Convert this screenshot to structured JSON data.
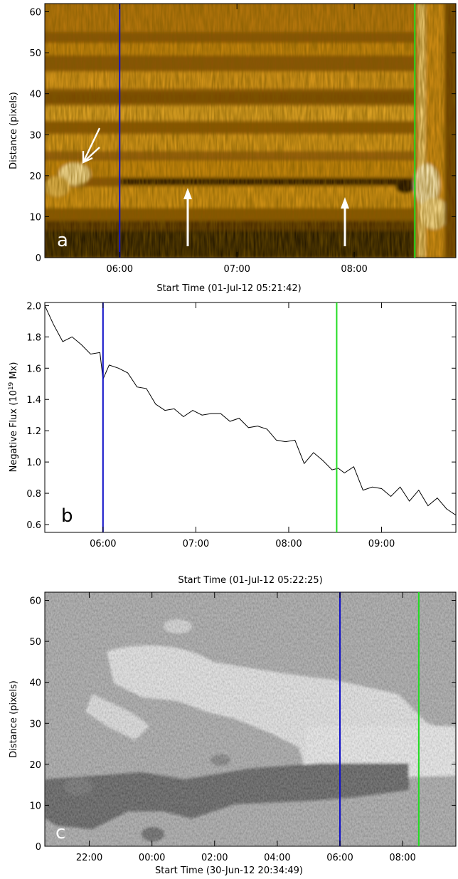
{
  "chart_data": [
    {
      "type": "heatmap",
      "panel_label": "a",
      "colormap": "yellow-orange (AIA 171-like)",
      "colors": {
        "dark": "#1a0d00",
        "mid": "#b8720a",
        "bright": "#ffe9a8",
        "marker_blue": "#1010c8",
        "marker_green": "#22dd22",
        "arrows": "#ffffff"
      },
      "ylabel": "Distance (pixels)",
      "xlabel": "Start Time (01-Jul-12 05:21:42)",
      "xlim_minutes_from_05_00": [
        21.7,
        232
      ],
      "ylim": [
        0,
        62
      ],
      "x_ticks": [
        "06:00",
        "07:00",
        "08:00"
      ],
      "x_tick_minutes_from_05_00": [
        60,
        120,
        180
      ],
      "y_ticks": [
        "0",
        "10",
        "20",
        "30",
        "40",
        "50",
        "60"
      ],
      "vlines": [
        {
          "color": "blue",
          "time": "06:00"
        },
        {
          "color": "green",
          "time": "08:31"
        }
      ],
      "annotations": [
        "double arrow at ~05:40, distance ~23",
        "arrow at ~06:35 pointing up to distance ~17",
        "arrow at ~07:58 pointing up to distance ~15"
      ]
    },
    {
      "type": "line",
      "panel_label": "b",
      "ylabel": "Negative Flux (10",
      "ylabel_superscript": "19",
      "ylabel_unit": " Mx)",
      "xlabel": "Start Time (01-Jul-12 05:22:25)",
      "xlim_minutes_from_05_00": [
        22.4,
        288
      ],
      "ylim": [
        0.55,
        2.02
      ],
      "x_ticks": [
        "06:00",
        "07:00",
        "08:00",
        "09:00"
      ],
      "x_tick_minutes_from_05_00": [
        60,
        120,
        180,
        240
      ],
      "y_ticks": [
        "0.6",
        "0.8",
        "1.0",
        "1.2",
        "1.4",
        "1.6",
        "1.8",
        "2.0"
      ],
      "y_tick_values": [
        0.6,
        0.8,
        1.0,
        1.2,
        1.4,
        1.6,
        1.8,
        2.0
      ],
      "series": [
        {
          "x": [
            22.4,
            28,
            34,
            40,
            46,
            52,
            58,
            60,
            64,
            70,
            76,
            82,
            88,
            94,
            100,
            106,
            112,
            118,
            124,
            130,
            136,
            142,
            148,
            154,
            160,
            166,
            172,
            178,
            184,
            190,
            196,
            202,
            208,
            212,
            216,
            222,
            228,
            234,
            240,
            246,
            252,
            258,
            264,
            270,
            276,
            282,
            288
          ],
          "y": [
            2.0,
            1.88,
            1.77,
            1.8,
            1.75,
            1.69,
            1.7,
            1.53,
            1.62,
            1.6,
            1.57,
            1.48,
            1.47,
            1.37,
            1.33,
            1.34,
            1.29,
            1.33,
            1.3,
            1.31,
            1.31,
            1.26,
            1.28,
            1.22,
            1.23,
            1.21,
            1.14,
            1.13,
            1.14,
            0.99,
            1.06,
            1.01,
            0.95,
            0.96,
            0.93,
            0.97,
            0.82,
            0.84,
            0.83,
            0.78,
            0.84,
            0.75,
            0.82,
            0.72,
            0.77,
            0.7,
            0.66
          ]
        }
      ],
      "line_color": "#000000",
      "vlines": [
        {
          "color": "blue",
          "time": "06:00"
        },
        {
          "color": "green",
          "time": "08:31"
        }
      ]
    },
    {
      "type": "heatmap",
      "panel_label": "c",
      "colormap": "gray (magnetogram difference)",
      "colors": {
        "white": "#ffffff",
        "gray": "#8c8c8c",
        "black": "#0a0a0a"
      },
      "ylabel": "Distance (pixels)",
      "xlabel": "Start Time (30-Jun-12 20:34:49)",
      "xlim_hours_from_20_00": [
        0.58,
        13.7
      ],
      "ylim": [
        0,
        62
      ],
      "x_ticks": [
        "22:00",
        "00:00",
        "02:00",
        "04:00",
        "06:00",
        "08:00"
      ],
      "x_tick_hours_from_20_00": [
        2,
        4,
        6,
        8,
        10,
        12
      ],
      "y_ticks": [
        "0",
        "10",
        "20",
        "30",
        "40",
        "50",
        "60"
      ],
      "vlines": [
        {
          "color": "blue",
          "time": "06:00"
        },
        {
          "color": "green",
          "time": "08:31"
        }
      ]
    }
  ]
}
